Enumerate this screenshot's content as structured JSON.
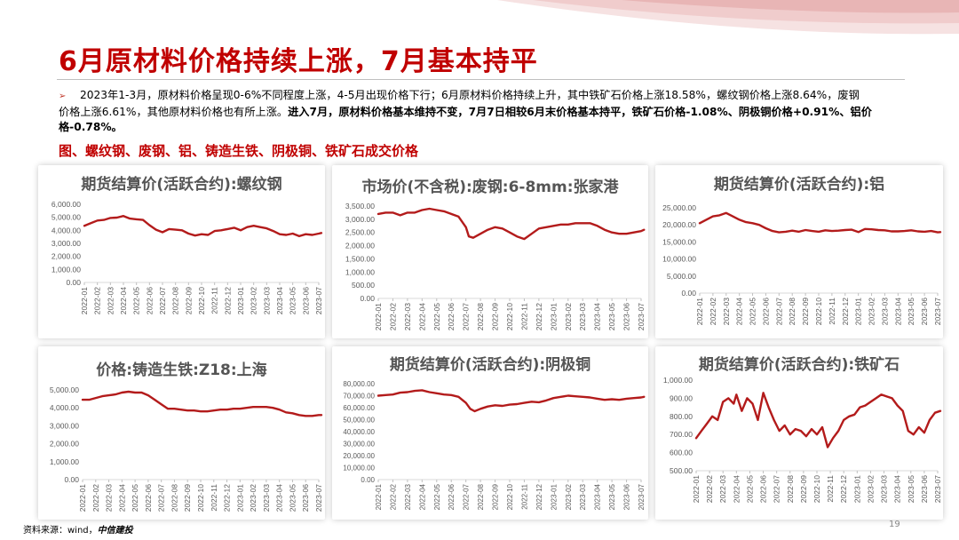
{
  "header": {
    "title": "6月原材料价格持续上涨，7月基本持平"
  },
  "summary": {
    "bullet": "➢",
    "line1": "2023年1-3月，原材料价格呈现0-6%不同程度上涨，4-5月出现价格下行；6月原材料价格持续上升，其中铁矿石价格上涨18.58%，螺纹钢价格上涨8.64%，废钢",
    "line2": "价格上涨6.61%，其他原材料价格也有所上涨。",
    "line2b": "进入7月，原材料价格基本维持不变，7月7日相较6月末价格基本持平，铁矿石价格-1.08%、阴极铜价格+0.91%、铝价",
    "line3": "格-0.78%。"
  },
  "figure_label": "图、螺纹钢、废钢、铝、铸造生铁、阴极铜、铁矿石成交价格",
  "source": {
    "prefix": "资料来源：wind，",
    "org": "中信建投"
  },
  "page_number": "19",
  "colors": {
    "accent": "#c00000",
    "line": "#b31b1b",
    "axis_text": "#595959"
  },
  "chart_data": [
    {
      "type": "line",
      "title": "期货结算价(活跃合约):螺纹钢",
      "y_ticks": [
        "0.00",
        "1,000.00",
        "2,000.00",
        "3,000.00",
        "4,000.00",
        "5,000.00",
        "6,000.00"
      ],
      "ylim": [
        0,
        6000
      ],
      "x_ticks": [
        "2022-01",
        "2022-02",
        "2022-03",
        "2022-04",
        "2022-05",
        "2022-06",
        "2022-07",
        "2022-08",
        "2022-09",
        "2022-10",
        "2022-11",
        "2022-12",
        "2023-01",
        "2023-02",
        "2023-03",
        "2023-04",
        "2023-05",
        "2023-06",
        "2023-07"
      ],
      "x": [
        0,
        0.5,
        1,
        1.5,
        2,
        2.5,
        3,
        3.5,
        4,
        4.5,
        5,
        5.5,
        6,
        6.5,
        7,
        7.5,
        8,
        8.5,
        9,
        9.5,
        10,
        10.5,
        11,
        11.5,
        12,
        12.5,
        13,
        13.5,
        14,
        14.5,
        15,
        15.5,
        16,
        16.5,
        17,
        17.5,
        18,
        18.2
      ],
      "values": [
        4350,
        4550,
        4750,
        4800,
        4950,
        4980,
        5100,
        4900,
        4850,
        4800,
        4400,
        4050,
        3850,
        4100,
        4050,
        4000,
        3750,
        3600,
        3700,
        3650,
        3950,
        4000,
        4100,
        4200,
        4000,
        4250,
        4350,
        4250,
        4150,
        3950,
        3700,
        3650,
        3750,
        3550,
        3700,
        3650,
        3750,
        3800
      ]
    },
    {
      "type": "line",
      "title": "市场价(不含税):废钢:6-8mm:张家港",
      "y_ticks": [
        "0.00",
        "500.00",
        "1,000.00",
        "1,500.00",
        "2,000.00",
        "2,500.00",
        "3,000.00",
        "3,500.00"
      ],
      "ylim": [
        0,
        3500
      ],
      "x_ticks": [
        "2022-01",
        "2022-02",
        "2022-03",
        "2022-04",
        "2022-05",
        "2022-06",
        "2022-07",
        "2022-08",
        "2022-09",
        "2022-10",
        "2022-11",
        "2022-12",
        "2023-01",
        "2023-02",
        "2023-03",
        "2023-04",
        "2023-05",
        "2023-06",
        "2023-07"
      ],
      "x": [
        0,
        0.5,
        1,
        1.5,
        2,
        2.5,
        3,
        3.5,
        4,
        4.5,
        5,
        5.5,
        6,
        6.2,
        6.5,
        7,
        7.5,
        8,
        8.5,
        9,
        9.5,
        10,
        10.5,
        11,
        11.5,
        12,
        12.5,
        13,
        13.5,
        14,
        14.5,
        15,
        15.5,
        16,
        16.5,
        17,
        17.5,
        18,
        18.2
      ],
      "values": [
        3200,
        3250,
        3250,
        3150,
        3250,
        3250,
        3350,
        3400,
        3350,
        3300,
        3200,
        3100,
        2700,
        2350,
        2300,
        2450,
        2600,
        2700,
        2650,
        2500,
        2350,
        2250,
        2450,
        2650,
        2700,
        2750,
        2800,
        2800,
        2850,
        2850,
        2850,
        2750,
        2600,
        2500,
        2450,
        2450,
        2500,
        2550,
        2600
      ]
    },
    {
      "type": "line",
      "title": "期货结算价(活跃合约):铝",
      "y_ticks": [
        "0.00",
        "5,000.00",
        "10,000.00",
        "15,000.00",
        "20,000.00",
        "25,000.00"
      ],
      "ylim": [
        0,
        25000
      ],
      "x_ticks": [
        "2022-01",
        "2022-02",
        "2022-03",
        "2022-04",
        "2022-05",
        "2022-06",
        "2022-07",
        "2022-08",
        "2022-09",
        "2022-10",
        "2022-11",
        "2022-12",
        "2023-01",
        "2023-02",
        "2023-03",
        "2023-04",
        "2023-05",
        "2023-06",
        "2023-07"
      ],
      "x": [
        0,
        0.5,
        1,
        1.5,
        2,
        2.5,
        3,
        3.5,
        4,
        4.5,
        5,
        5.5,
        6,
        6.5,
        7,
        7.5,
        8,
        8.5,
        9,
        9.5,
        10,
        10.5,
        11,
        11.5,
        12,
        12.5,
        13,
        13.5,
        14,
        14.5,
        15,
        15.5,
        16,
        16.5,
        17,
        17.5,
        18,
        18.2
      ],
      "values": [
        20500,
        21500,
        22500,
        22800,
        23500,
        22500,
        21500,
        20800,
        20500,
        20000,
        19000,
        18200,
        17800,
        18000,
        18300,
        18000,
        18500,
        18200,
        18000,
        18400,
        18200,
        18300,
        18500,
        18600,
        17900,
        18800,
        18700,
        18500,
        18400,
        18100,
        18100,
        18200,
        18400,
        18100,
        18000,
        18200,
        17800,
        17900
      ]
    },
    {
      "type": "line",
      "title": "价格:铸造生铁:Z18:上海",
      "y_ticks": [
        "0.00",
        "1,000.00",
        "2,000.00",
        "3,000.00",
        "4,000.00",
        "5,000.00"
      ],
      "ylim": [
        0,
        5000
      ],
      "x_ticks": [
        "2022-01",
        "2022-02",
        "2022-03",
        "2022-04",
        "2022-05",
        "2022-06",
        "2022-07",
        "2022-08",
        "2022-09",
        "2022-10",
        "2022-11",
        "2022-12",
        "2023-01",
        "2023-02",
        "2023-03",
        "2023-04",
        "2023-05",
        "2023-06",
        "2023-07"
      ],
      "x": [
        0,
        0.5,
        1,
        1.5,
        2,
        2.5,
        3,
        3.5,
        4,
        4.5,
        5,
        5.5,
        6,
        6.5,
        7,
        7.5,
        8,
        8.5,
        9,
        9.5,
        10,
        10.5,
        11,
        11.5,
        12,
        12.5,
        13,
        13.5,
        14,
        14.5,
        15,
        15.5,
        16,
        16.5,
        17,
        17.5,
        18,
        18.2
      ],
      "values": [
        4450,
        4450,
        4550,
        4650,
        4700,
        4750,
        4850,
        4900,
        4850,
        4850,
        4700,
        4450,
        4200,
        3950,
        3950,
        3900,
        3850,
        3850,
        3800,
        3800,
        3850,
        3900,
        3900,
        3950,
        3950,
        4000,
        4050,
        4050,
        4050,
        4000,
        3900,
        3750,
        3700,
        3600,
        3550,
        3550,
        3600,
        3600
      ]
    },
    {
      "type": "line",
      "title": "期货结算价(活跃合约):阴极铜",
      "y_ticks": [
        "0.00",
        "10,000.00",
        "20,000.00",
        "30,000.00",
        "40,000.00",
        "50,000.00",
        "60,000.00",
        "70,000.00",
        "80,000.00"
      ],
      "ylim": [
        0,
        80000
      ],
      "x_ticks": [
        "2022-01",
        "2022-02",
        "2022-03",
        "2022-04",
        "2022-05",
        "2022-06",
        "2022-07",
        "2022-08",
        "2022-09",
        "2022-10",
        "2022-11",
        "2022-12",
        "2023-01",
        "2023-02",
        "2023-03",
        "2023-04",
        "2023-05",
        "2023-06",
        "2023-07"
      ],
      "x": [
        0,
        0.5,
        1,
        1.5,
        2,
        2.5,
        3,
        3.5,
        4,
        4.5,
        5,
        5.5,
        6,
        6.3,
        6.6,
        7,
        7.5,
        8,
        8.5,
        9,
        9.5,
        10,
        10.5,
        11,
        11.5,
        12,
        12.5,
        13,
        13.5,
        14,
        14.5,
        15,
        15.5,
        16,
        16.5,
        17,
        17.5,
        18,
        18.2
      ],
      "values": [
        70000,
        70500,
        71000,
        72500,
        73000,
        74000,
        74500,
        73000,
        72000,
        71000,
        70500,
        69000,
        64000,
        59000,
        57000,
        59000,
        61000,
        62000,
        61500,
        62500,
        63000,
        64000,
        65000,
        64500,
        66000,
        68000,
        69000,
        70000,
        69500,
        69000,
        68500,
        67500,
        66500,
        67000,
        66500,
        67500,
        68000,
        68500,
        69000
      ]
    },
    {
      "type": "line",
      "title": "期货结算价(活跃合约):铁矿石",
      "y_ticks": [
        "500.00",
        "600.00",
        "700.00",
        "800.00",
        "900.00",
        "1,000.00"
      ],
      "ylim": [
        500,
        1000
      ],
      "x_ticks": [
        "2022-01",
        "2022-02",
        "2022-03",
        "2022-04",
        "2022-05",
        "2022-06",
        "2022-07",
        "2022-08",
        "2022-09",
        "2022-10",
        "2022-11",
        "2022-12",
        "2023-01",
        "2023-02",
        "2023-03",
        "2023-04",
        "2023-05",
        "2023-06",
        "2023-07"
      ],
      "x": [
        0,
        0.4,
        0.8,
        1.2,
        1.6,
        2,
        2.4,
        2.8,
        3,
        3.4,
        3.8,
        4.2,
        4.6,
        5,
        5.4,
        5.8,
        6.2,
        6.6,
        7,
        7.4,
        7.8,
        8.2,
        8.6,
        9,
        9.4,
        9.8,
        10.2,
        10.6,
        11,
        11.4,
        11.8,
        12.2,
        12.6,
        13,
        13.4,
        13.8,
        14.2,
        14.6,
        15,
        15.4,
        15.8,
        16.2,
        16.6,
        17,
        17.4,
        17.8,
        18.2
      ],
      "values": [
        680,
        720,
        760,
        800,
        780,
        880,
        900,
        870,
        920,
        830,
        900,
        870,
        780,
        930,
        850,
        780,
        720,
        750,
        700,
        730,
        720,
        690,
        730,
        700,
        740,
        630,
        680,
        720,
        780,
        800,
        810,
        850,
        860,
        880,
        900,
        920,
        910,
        900,
        860,
        830,
        720,
        700,
        740,
        710,
        780,
        820,
        830
      ]
    }
  ]
}
